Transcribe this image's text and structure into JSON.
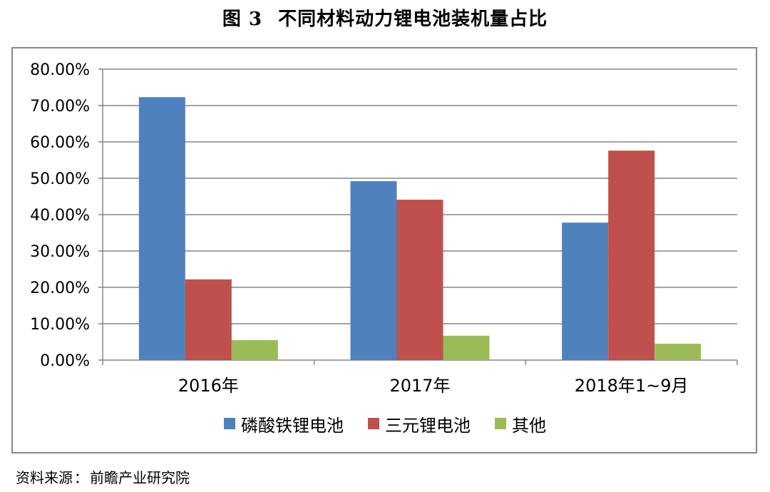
{
  "figure": {
    "number": "图 3",
    "title": "不同材料动力锂电池装机量占比",
    "source_label": "资料来源",
    "source_sep": "：",
    "source_value": "前瞻产业研究院"
  },
  "colors": {
    "blue": "#4f81bd",
    "red": "#c0504d",
    "green": "#9bbb59",
    "grid": "#868686",
    "frame": "#878787"
  },
  "chart_data": {
    "type": "bar",
    "title": "不同材料动力锂电池装机量占比",
    "xlabel": "",
    "ylabel": "",
    "categories": [
      "2016年",
      "2017年",
      "2018年1~9月"
    ],
    "series": [
      {
        "name": "磷酸铁锂电池",
        "color": "#4f81bd",
        "values": [
          0.723,
          0.492,
          0.378
        ]
      },
      {
        "name": "三元锂电池",
        "color": "#c0504d",
        "values": [
          0.222,
          0.441,
          0.576
        ]
      },
      {
        "name": "其他",
        "color": "#9bbb59",
        "values": [
          0.055,
          0.067,
          0.045
        ]
      }
    ],
    "ylim": [
      0,
      0.8
    ],
    "yticks": [
      0,
      0.1,
      0.2,
      0.3,
      0.4,
      0.5,
      0.6,
      0.7,
      0.8
    ],
    "ytick_labels": [
      "0.00%",
      "10.00%",
      "20.00%",
      "30.00%",
      "40.00%",
      "50.00%",
      "60.00%",
      "70.00%",
      "80.00%"
    ],
    "grid": true,
    "legend_position": "bottom"
  }
}
